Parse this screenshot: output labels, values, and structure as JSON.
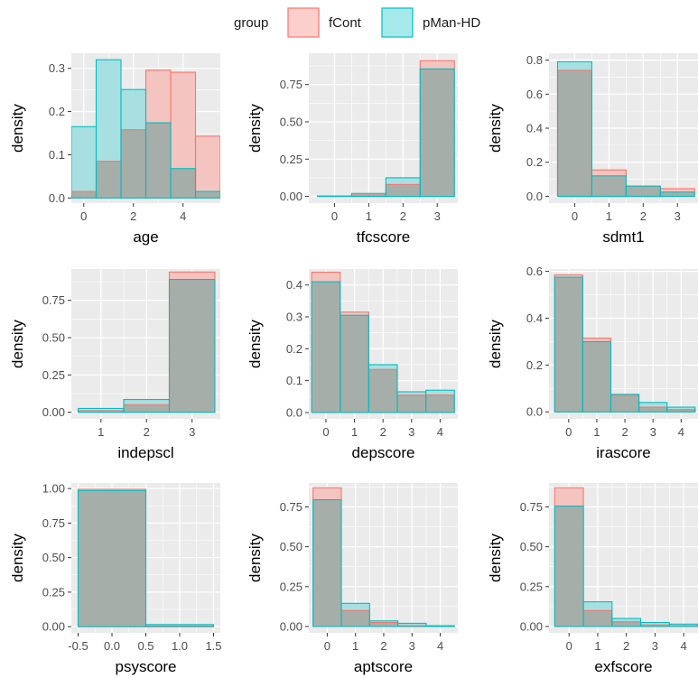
{
  "legend": {
    "title": "group",
    "entries": [
      {
        "label": "fCont",
        "fill": "#F8766D",
        "stroke": "#F8766D"
      },
      {
        "label": "pMan-HD",
        "fill": "#00BFC4",
        "stroke": "#00BFC4"
      }
    ],
    "placement": "top-center"
  },
  "colors": {
    "panel_background": "#EBEBEB",
    "grid": "#ffffff",
    "fCont_fill": "#F8766D",
    "pManHD_fill": "#00BFC4",
    "overlap_fill": "#A6AEA9"
  },
  "chart_data": [
    {
      "type": "bar",
      "panel": 0,
      "xlabel": "age",
      "ylabel": "density",
      "xlim": [
        -0.5,
        5.5
      ],
      "ylim": [
        -0.012,
        0.335
      ],
      "xticks": [
        0,
        2,
        4
      ],
      "xtick_labels": [
        "0",
        "2",
        "4"
      ],
      "yticks": [
        0,
        0.1,
        0.2,
        0.3
      ],
      "ytick_labels": [
        "0.0",
        "0.1",
        "0.2",
        "0.3"
      ],
      "bin_width": 1,
      "bins": [
        0,
        1,
        2,
        3,
        4,
        5
      ],
      "series": [
        {
          "name": "fCont",
          "values": [
            0.015,
            0.085,
            0.158,
            0.296,
            0.291,
            0.143
          ]
        },
        {
          "name": "pMan-HD",
          "values": [
            0.165,
            0.32,
            0.251,
            0.174,
            0.068,
            0.015
          ]
        }
      ]
    },
    {
      "type": "bar",
      "panel": 1,
      "xlabel": "tfcscore",
      "ylabel": "density",
      "xlim": [
        -0.75,
        3.6
      ],
      "ylim": [
        -0.045,
        0.96
      ],
      "xticks": [
        0,
        1,
        2,
        3
      ],
      "xtick_labels": [
        "0",
        "1",
        "2",
        "3"
      ],
      "yticks": [
        0,
        0.25,
        0.5,
        0.75
      ],
      "ytick_labels": [
        "0.00",
        "0.25",
        "0.50",
        "0.75"
      ],
      "bin_width": 1,
      "bins": [
        0,
        1,
        2,
        3
      ],
      "series": [
        {
          "name": "fCont",
          "values": [
            0.0,
            0.01,
            0.08,
            0.91
          ]
        },
        {
          "name": "pMan-HD",
          "values": [
            0.003,
            0.02,
            0.125,
            0.855
          ]
        }
      ]
    },
    {
      "type": "bar",
      "panel": 2,
      "xlabel": "sdmt1",
      "ylabel": "density",
      "xlim": [
        -0.75,
        3.6
      ],
      "ylim": [
        -0.04,
        0.84
      ],
      "xticks": [
        0,
        1,
        2,
        3
      ],
      "xtick_labels": [
        "0",
        "1",
        "2",
        "3"
      ],
      "yticks": [
        0,
        0.2,
        0.4,
        0.6,
        0.8
      ],
      "ytick_labels": [
        "0.0",
        "0.2",
        "0.4",
        "0.6",
        "0.8"
      ],
      "bin_width": 1,
      "bins": [
        0,
        1,
        2,
        3,
        4
      ],
      "series": [
        {
          "name": "fCont",
          "values": [
            0.74,
            0.155,
            0.06,
            0.045,
            0.0
          ]
        },
        {
          "name": "pMan-HD",
          "values": [
            0.79,
            0.12,
            0.06,
            0.025,
            0.0
          ]
        }
      ]
    },
    {
      "type": "bar",
      "panel": 3,
      "xlabel": "indepscl",
      "ylabel": "density",
      "xlim": [
        0.35,
        3.62
      ],
      "ylim": [
        -0.045,
        0.96
      ],
      "xticks": [
        1,
        2,
        3
      ],
      "xtick_labels": [
        "1",
        "2",
        "3"
      ],
      "yticks": [
        0,
        0.25,
        0.5,
        0.75
      ],
      "ytick_labels": [
        "0.00",
        "0.25",
        "0.50",
        "0.75"
      ],
      "bin_width": 1,
      "bins": [
        1,
        2,
        3
      ],
      "series": [
        {
          "name": "fCont",
          "values": [
            0.01,
            0.05,
            0.94
          ]
        },
        {
          "name": "pMan-HD",
          "values": [
            0.025,
            0.085,
            0.89
          ]
        }
      ]
    },
    {
      "type": "bar",
      "panel": 4,
      "xlabel": "depscore",
      "ylabel": "density",
      "xlim": [
        -0.6,
        4.62
      ],
      "ylim": [
        -0.02,
        0.45
      ],
      "xticks": [
        0,
        1,
        2,
        3,
        4
      ],
      "xtick_labels": [
        "0",
        "1",
        "2",
        "3",
        "4"
      ],
      "yticks": [
        0,
        0.1,
        0.2,
        0.3,
        0.4
      ],
      "ytick_labels": [
        "0.0",
        "0.1",
        "0.2",
        "0.3",
        "0.4"
      ],
      "bin_width": 1,
      "bins": [
        0,
        1,
        2,
        3,
        4
      ],
      "series": [
        {
          "name": "fCont",
          "values": [
            0.44,
            0.315,
            0.135,
            0.055,
            0.055
          ]
        },
        {
          "name": "pMan-HD",
          "values": [
            0.41,
            0.305,
            0.15,
            0.065,
            0.07
          ]
        }
      ]
    },
    {
      "type": "bar",
      "panel": 5,
      "xlabel": "irascore",
      "ylabel": "density",
      "xlim": [
        -0.7,
        4.6
      ],
      "ylim": [
        -0.03,
        0.61
      ],
      "xticks": [
        0,
        1,
        2,
        3,
        4
      ],
      "xtick_labels": [
        "0",
        "1",
        "2",
        "3",
        "4"
      ],
      "yticks": [
        0,
        0.2,
        0.4,
        0.6
      ],
      "ytick_labels": [
        "0.0",
        "0.2",
        "0.4",
        "0.6"
      ],
      "bin_width": 1,
      "bins": [
        0,
        1,
        2,
        3,
        4
      ],
      "series": [
        {
          "name": "fCont",
          "values": [
            0.585,
            0.315,
            0.07,
            0.02,
            0.01
          ]
        },
        {
          "name": "pMan-HD",
          "values": [
            0.575,
            0.3,
            0.075,
            0.04,
            0.02
          ]
        }
      ]
    },
    {
      "type": "bar",
      "panel": 6,
      "xlabel": "psyscore",
      "ylabel": "density",
      "xlim": [
        -0.6,
        1.6
      ],
      "ylim": [
        -0.045,
        1.04
      ],
      "xticks": [
        -0.5,
        0,
        0.5,
        1,
        1.5
      ],
      "xtick_labels": [
        "-0.5",
        "0.0",
        "0.5",
        "1.0",
        "1.5"
      ],
      "yticks": [
        0,
        0.25,
        0.5,
        0.75,
        1
      ],
      "ytick_labels": [
        "0.00",
        "0.25",
        "0.50",
        "0.75",
        "1.00"
      ],
      "bin_width": 1,
      "bins": [
        0,
        1
      ],
      "series": [
        {
          "name": "fCont",
          "values": [
            0.995,
            0.005
          ]
        },
        {
          "name": "pMan-HD",
          "values": [
            0.985,
            0.015
          ]
        }
      ]
    },
    {
      "type": "bar",
      "panel": 7,
      "xlabel": "aptscore",
      "ylabel": "density",
      "xlim": [
        -0.65,
        4.62
      ],
      "ylim": [
        -0.04,
        0.9
      ],
      "xticks": [
        0,
        1,
        2,
        3,
        4
      ],
      "xtick_labels": [
        "0",
        "1",
        "2",
        "3",
        "4"
      ],
      "yticks": [
        0,
        0.25,
        0.5,
        0.75
      ],
      "ytick_labels": [
        "0.00",
        "0.25",
        "0.50",
        "0.75"
      ],
      "bin_width": 1,
      "bins": [
        0,
        1,
        2,
        3,
        4
      ],
      "series": [
        {
          "name": "fCont",
          "values": [
            0.87,
            0.1,
            0.025,
            0.005,
            0.0
          ]
        },
        {
          "name": "pMan-HD",
          "values": [
            0.795,
            0.145,
            0.035,
            0.02,
            0.005
          ]
        }
      ]
    },
    {
      "type": "bar",
      "panel": 8,
      "xlabel": "exfscore",
      "ylabel": "density",
      "xlim": [
        -0.7,
        4.5
      ],
      "ylim": [
        -0.04,
        0.9
      ],
      "xticks": [
        0,
        1,
        2,
        3,
        4
      ],
      "xtick_labels": [
        "0",
        "1",
        "2",
        "3",
        "4"
      ],
      "yticks": [
        0,
        0.25,
        0.5,
        0.75
      ],
      "ytick_labels": [
        "0.00",
        "0.25",
        "0.50",
        "0.75"
      ],
      "bin_width": 1,
      "bins": [
        0,
        1,
        2,
        3,
        4
      ],
      "series": [
        {
          "name": "fCont",
          "values": [
            0.87,
            0.1,
            0.03,
            0.01,
            0.005
          ]
        },
        {
          "name": "pMan-HD",
          "values": [
            0.755,
            0.155,
            0.05,
            0.025,
            0.015
          ]
        }
      ]
    }
  ]
}
